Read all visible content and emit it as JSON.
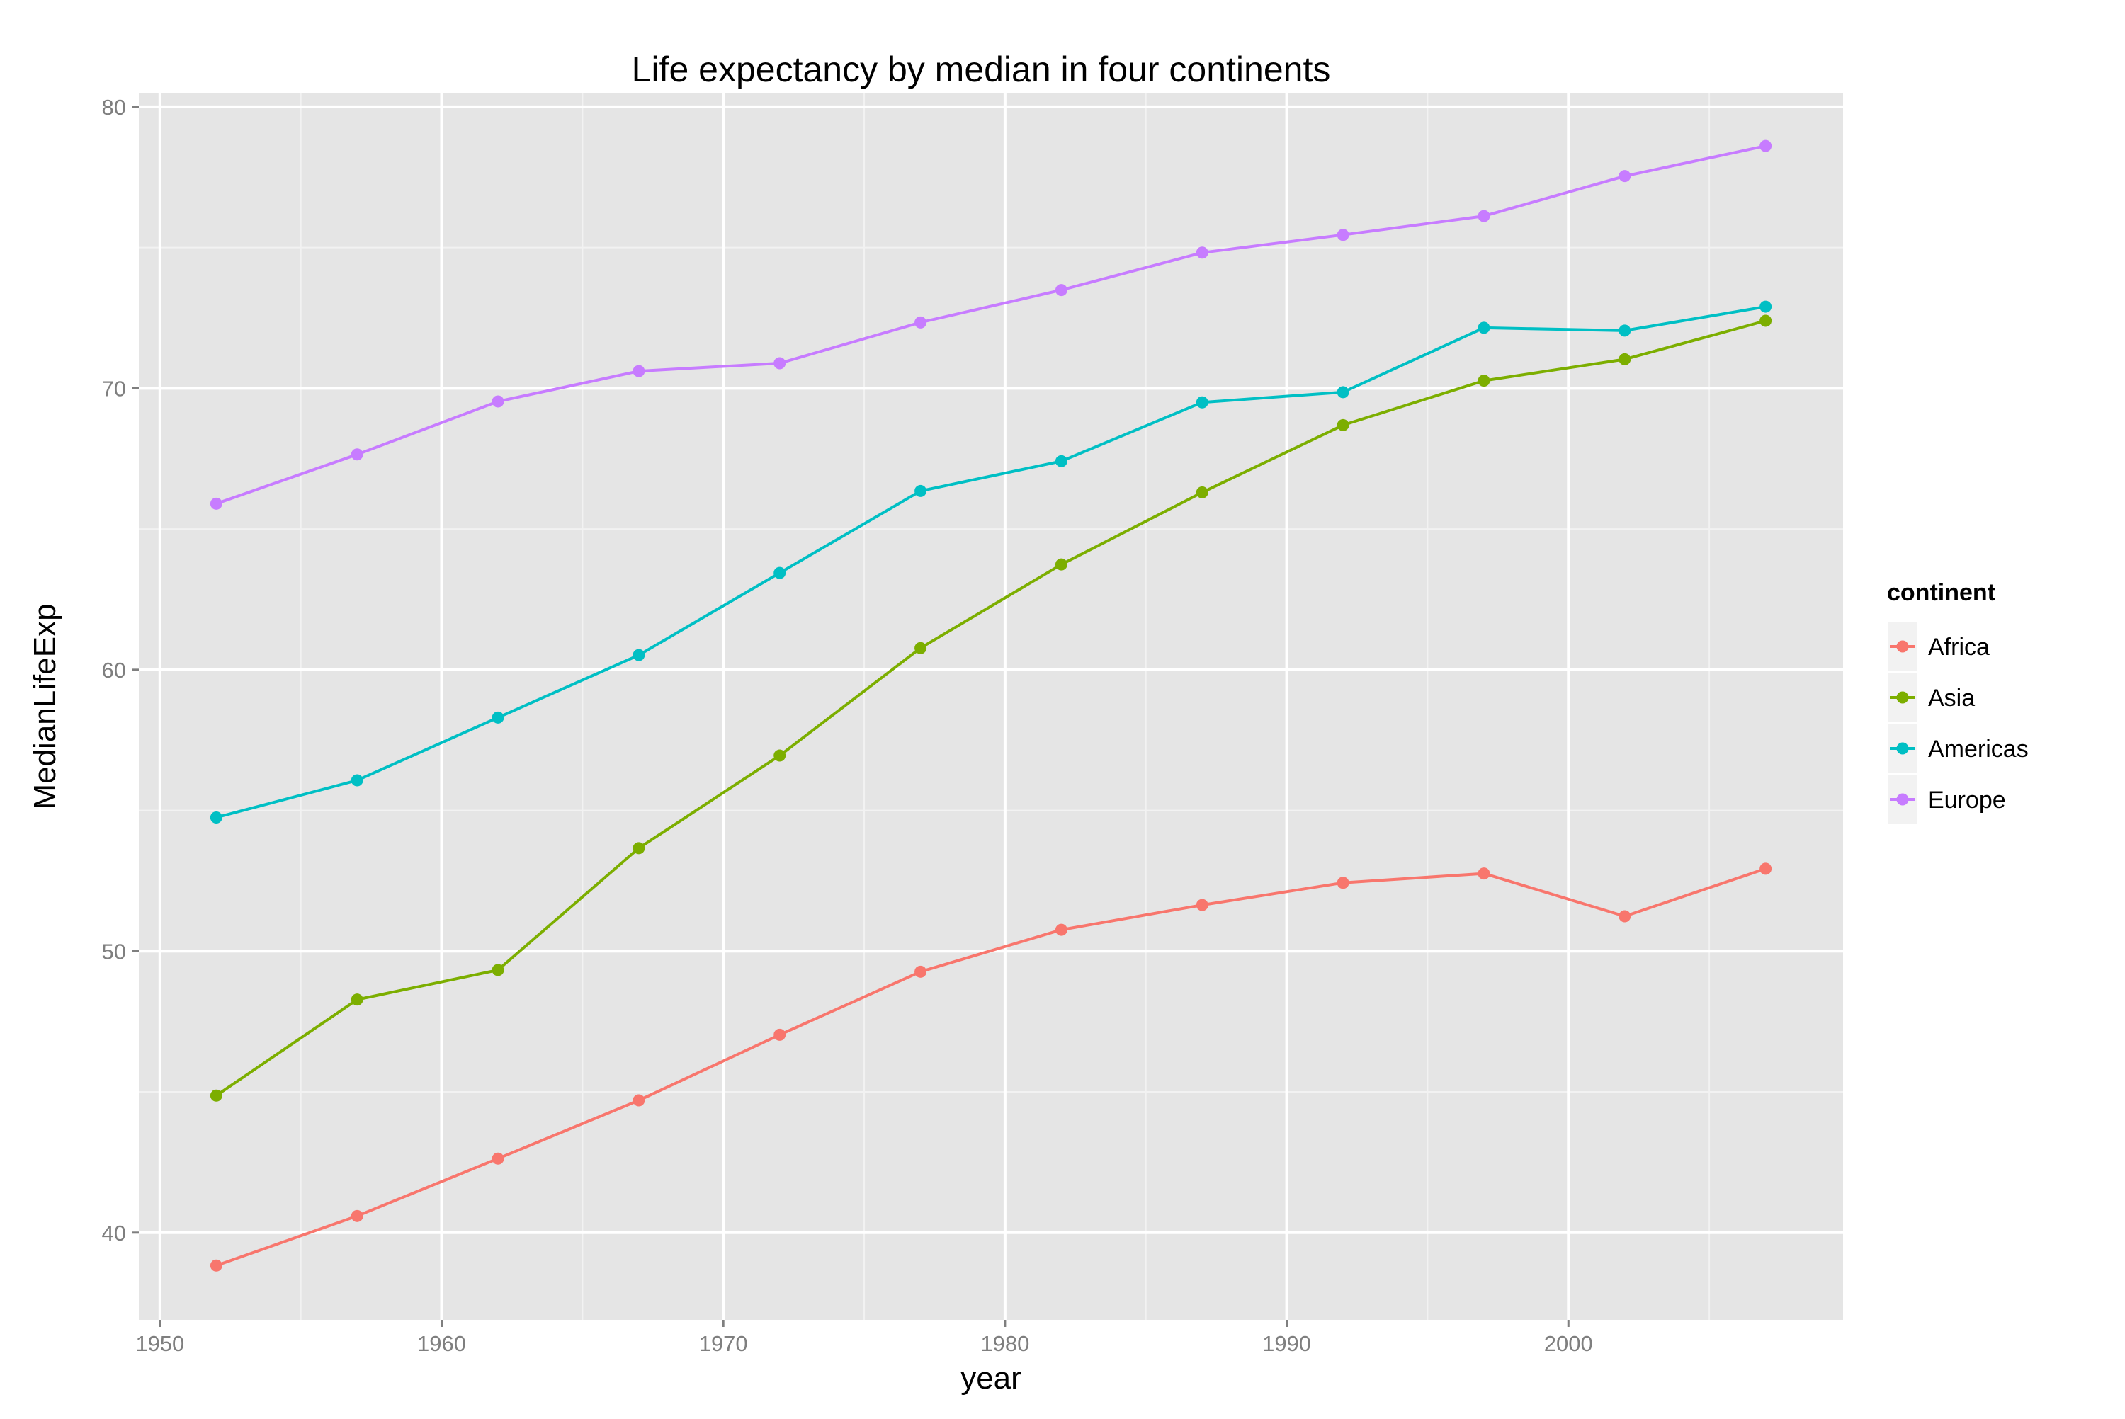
{
  "chart_data": {
    "type": "line",
    "title": "Life expectancy by median in four continents",
    "xlabel": "year",
    "ylabel": "MedianLifeExp",
    "xlim": [
      1949.25,
      2009.75
    ],
    "ylim": [
      36.9,
      80.5
    ],
    "x_ticks": [
      1950,
      1960,
      1970,
      1980,
      1990,
      2000
    ],
    "x_minor_ticks": [
      1955,
      1965,
      1975,
      1985,
      1995,
      2005
    ],
    "y_ticks": [
      40,
      50,
      60,
      70,
      80
    ],
    "y_minor_ticks": [
      45,
      55,
      65,
      75
    ],
    "grid": true,
    "legend": {
      "title": "continent",
      "placement": "right"
    },
    "x": [
      1952,
      1957,
      1962,
      1967,
      1972,
      1977,
      1982,
      1987,
      1992,
      1997,
      2002,
      2007
    ],
    "series": [
      {
        "name": "Africa",
        "color": "#F8766D",
        "values": [
          38.83,
          40.59,
          42.63,
          44.7,
          47.03,
          49.27,
          50.76,
          51.64,
          52.43,
          52.76,
          51.24,
          52.93
        ]
      },
      {
        "name": "Asia",
        "color": "#7CAE00",
        "values": [
          44.87,
          48.28,
          49.33,
          53.66,
          56.95,
          60.77,
          63.74,
          66.3,
          68.69,
          70.27,
          71.03,
          72.4
        ]
      },
      {
        "name": "Americas",
        "color": "#00BFC4",
        "values": [
          54.75,
          56.07,
          58.3,
          60.52,
          63.44,
          66.35,
          67.41,
          69.5,
          69.86,
          72.15,
          72.05,
          72.9
        ]
      },
      {
        "name": "Europe",
        "color": "#C77CFF",
        "values": [
          65.9,
          67.65,
          69.53,
          70.61,
          70.89,
          72.34,
          73.49,
          74.82,
          75.45,
          76.12,
          77.54,
          78.61
        ]
      }
    ]
  }
}
